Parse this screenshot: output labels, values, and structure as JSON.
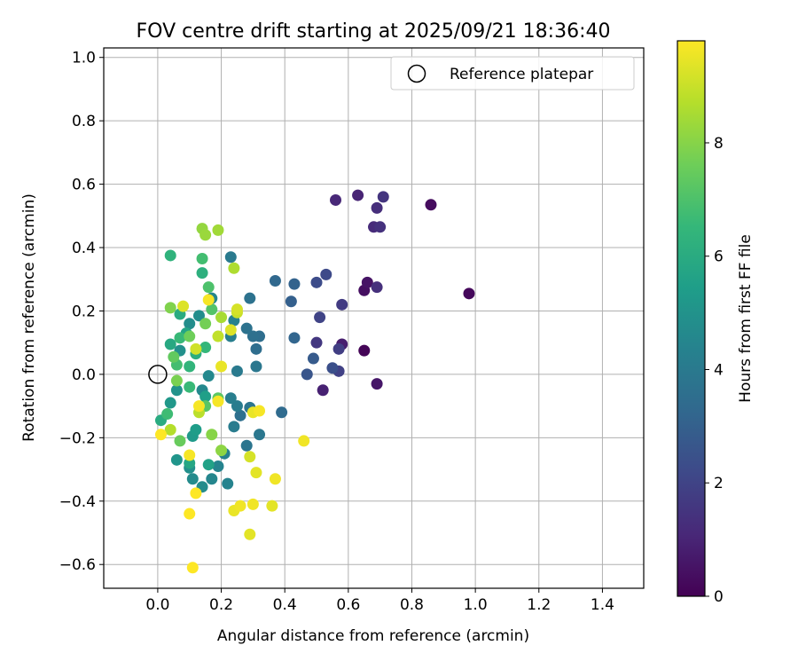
{
  "chart_data": {
    "type": "scatter",
    "title": "FOV centre drift starting at 2025/09/21 18:36:40",
    "xlabel": "Angular distance from reference (arcmin)",
    "ylabel": "Rotation from reference (arcmin)",
    "xlim": [
      -0.17,
      1.53
    ],
    "ylim": [
      -0.675,
      1.03
    ],
    "xticks": [
      0.0,
      0.2,
      0.4,
      0.6,
      0.8,
      1.0,
      1.2,
      1.4
    ],
    "xtick_labels": [
      "0.0",
      "0.2",
      "0.4",
      "0.6",
      "0.8",
      "1.0",
      "1.2",
      "1.4"
    ],
    "yticks": [
      -0.6,
      -0.4,
      -0.2,
      0.0,
      0.2,
      0.4,
      0.6,
      0.8,
      1.0
    ],
    "ytick_labels": [
      "−0.6",
      "−0.4",
      "−0.2",
      "0.0",
      "0.2",
      "0.4",
      "0.6",
      "0.8",
      "1.0"
    ],
    "grid": true,
    "legend": {
      "position": "top-right",
      "entries": [
        "Reference platepar"
      ]
    },
    "reference_point": {
      "x": 0.0,
      "y": 0.0,
      "label": "Reference platepar"
    },
    "colorbar": {
      "label": "Hours from first FF file",
      "range": [
        0,
        9.8
      ],
      "ticks": [
        0,
        2,
        4,
        6,
        8
      ],
      "tick_labels": [
        "0",
        "2",
        "4",
        "6",
        "8"
      ],
      "colormap": [
        "#440154",
        "#482878",
        "#3e4989",
        "#31688e",
        "#26828e",
        "#1f9e89",
        "#35b779",
        "#6ece58",
        "#b5de2b",
        "#fde725"
      ]
    },
    "points": [
      {
        "x": 0.65,
        "y": 0.075,
        "h": 0.1
      },
      {
        "x": 0.98,
        "y": 0.255,
        "h": 0.2
      },
      {
        "x": 0.86,
        "y": 0.535,
        "h": 0.3
      },
      {
        "x": 0.65,
        "y": 0.265,
        "h": 0.4
      },
      {
        "x": 0.66,
        "y": 0.29,
        "h": 0.5
      },
      {
        "x": 0.69,
        "y": -0.03,
        "h": 0.6
      },
      {
        "x": 0.58,
        "y": 0.095,
        "h": 0.8
      },
      {
        "x": 0.52,
        "y": -0.05,
        "h": 0.9
      },
      {
        "x": 0.63,
        "y": 0.565,
        "h": 1.0
      },
      {
        "x": 0.56,
        "y": 0.55,
        "h": 1.1
      },
      {
        "x": 0.68,
        "y": 0.465,
        "h": 1.2
      },
      {
        "x": 0.69,
        "y": 0.525,
        "h": 1.3
      },
      {
        "x": 0.69,
        "y": 0.275,
        "h": 1.35
      },
      {
        "x": 0.7,
        "y": 0.465,
        "h": 1.4
      },
      {
        "x": 0.71,
        "y": 0.56,
        "h": 1.5
      },
      {
        "x": 0.5,
        "y": 0.1,
        "h": 1.6
      },
      {
        "x": 0.58,
        "y": 0.22,
        "h": 1.7
      },
      {
        "x": 0.57,
        "y": 0.08,
        "h": 1.8
      },
      {
        "x": 0.57,
        "y": 0.01,
        "h": 1.9
      },
      {
        "x": 0.51,
        "y": 0.18,
        "h": 2.0
      },
      {
        "x": 0.53,
        "y": 0.315,
        "h": 2.2
      },
      {
        "x": 0.5,
        "y": 0.29,
        "h": 2.3
      },
      {
        "x": 0.55,
        "y": 0.02,
        "h": 2.4
      },
      {
        "x": 0.47,
        "y": 0.0,
        "h": 2.6
      },
      {
        "x": 0.49,
        "y": 0.05,
        "h": 2.8
      },
      {
        "x": 0.42,
        "y": 0.23,
        "h": 3.0
      },
      {
        "x": 0.43,
        "y": 0.285,
        "h": 3.1
      },
      {
        "x": 0.43,
        "y": 0.115,
        "h": 3.2
      },
      {
        "x": 0.37,
        "y": 0.295,
        "h": 3.3
      },
      {
        "x": 0.39,
        "y": -0.12,
        "h": 3.4
      },
      {
        "x": 0.32,
        "y": 0.12,
        "h": 3.5
      },
      {
        "x": 0.31,
        "y": 0.08,
        "h": 3.5
      },
      {
        "x": 0.3,
        "y": 0.12,
        "h": 3.6
      },
      {
        "x": 0.26,
        "y": -0.13,
        "h": 3.6
      },
      {
        "x": 0.28,
        "y": 0.145,
        "h": 3.7
      },
      {
        "x": 0.29,
        "y": 0.24,
        "h": 3.7
      },
      {
        "x": 0.28,
        "y": -0.225,
        "h": 3.8
      },
      {
        "x": 0.29,
        "y": -0.105,
        "h": 3.8
      },
      {
        "x": 0.31,
        "y": 0.025,
        "h": 3.9
      },
      {
        "x": 0.32,
        "y": -0.19,
        "h": 3.9
      },
      {
        "x": 0.23,
        "y": 0.37,
        "h": 4.0
      },
      {
        "x": 0.25,
        "y": 0.01,
        "h": 4.0
      },
      {
        "x": 0.24,
        "y": -0.165,
        "h": 4.1
      },
      {
        "x": 0.25,
        "y": -0.1,
        "h": 4.1
      },
      {
        "x": 0.23,
        "y": -0.075,
        "h": 4.2
      },
      {
        "x": 0.23,
        "y": 0.12,
        "h": 4.2
      },
      {
        "x": 0.24,
        "y": 0.17,
        "h": 4.3
      },
      {
        "x": 0.21,
        "y": -0.25,
        "h": 4.3
      },
      {
        "x": 0.22,
        "y": -0.345,
        "h": 4.4
      },
      {
        "x": 0.19,
        "y": -0.29,
        "h": 4.4
      },
      {
        "x": 0.17,
        "y": -0.33,
        "h": 4.5
      },
      {
        "x": 0.17,
        "y": 0.24,
        "h": 4.5
      },
      {
        "x": 0.16,
        "y": -0.005,
        "h": 4.6
      },
      {
        "x": 0.14,
        "y": -0.05,
        "h": 4.6
      },
      {
        "x": 0.14,
        "y": -0.355,
        "h": 4.7
      },
      {
        "x": 0.11,
        "y": -0.33,
        "h": 4.7
      },
      {
        "x": 0.13,
        "y": 0.185,
        "h": 4.8
      },
      {
        "x": 0.1,
        "y": 0.16,
        "h": 4.8
      },
      {
        "x": 0.1,
        "y": -0.295,
        "h": 4.9
      },
      {
        "x": 0.07,
        "y": 0.075,
        "h": 4.9
      },
      {
        "x": 0.06,
        "y": -0.05,
        "h": 5.0
      },
      {
        "x": 0.06,
        "y": -0.27,
        "h": 5.1
      },
      {
        "x": 0.04,
        "y": -0.09,
        "h": 5.2
      },
      {
        "x": 0.11,
        "y": -0.195,
        "h": 5.3
      },
      {
        "x": 0.12,
        "y": -0.175,
        "h": 5.4
      },
      {
        "x": 0.15,
        "y": -0.07,
        "h": 5.5
      },
      {
        "x": 0.16,
        "y": -0.285,
        "h": 5.6
      },
      {
        "x": 0.09,
        "y": 0.13,
        "h": 5.7
      },
      {
        "x": 0.1,
        "y": -0.28,
        "h": 5.8
      },
      {
        "x": 0.04,
        "y": 0.095,
        "h": 5.9
      },
      {
        "x": 0.01,
        "y": -0.145,
        "h": 6.0
      },
      {
        "x": 0.07,
        "y": 0.19,
        "h": 6.0
      },
      {
        "x": 0.12,
        "y": 0.065,
        "h": 6.1
      },
      {
        "x": 0.14,
        "y": 0.32,
        "h": 6.2
      },
      {
        "x": 0.04,
        "y": 0.375,
        "h": 6.3
      },
      {
        "x": 0.1,
        "y": 0.025,
        "h": 6.4
      },
      {
        "x": 0.15,
        "y": 0.085,
        "h": 6.5
      },
      {
        "x": 0.07,
        "y": 0.115,
        "h": 6.6
      },
      {
        "x": 0.1,
        "y": -0.04,
        "h": 6.6
      },
      {
        "x": 0.03,
        "y": -0.125,
        "h": 6.7
      },
      {
        "x": 0.06,
        "y": 0.03,
        "h": 6.8
      },
      {
        "x": 0.14,
        "y": 0.365,
        "h": 6.8
      },
      {
        "x": 0.16,
        "y": 0.275,
        "h": 7.0
      },
      {
        "x": 0.17,
        "y": 0.205,
        "h": 7.1
      },
      {
        "x": 0.15,
        "y": -0.1,
        "h": 7.2
      },
      {
        "x": 0.19,
        "y": -0.075,
        "h": 7.3
      },
      {
        "x": 0.05,
        "y": 0.055,
        "h": 7.4
      },
      {
        "x": 0.07,
        "y": -0.21,
        "h": 7.5
      },
      {
        "x": 0.1,
        "y": 0.12,
        "h": 7.6
      },
      {
        "x": 0.15,
        "y": 0.16,
        "h": 7.7
      },
      {
        "x": 0.06,
        "y": -0.02,
        "h": 7.8
      },
      {
        "x": 0.04,
        "y": 0.21,
        "h": 7.9
      },
      {
        "x": 0.17,
        "y": -0.19,
        "h": 8.0
      },
      {
        "x": 0.2,
        "y": -0.24,
        "h": 8.1
      },
      {
        "x": 0.14,
        "y": 0.46,
        "h": 8.2
      },
      {
        "x": 0.15,
        "y": 0.44,
        "h": 8.3
      },
      {
        "x": 0.19,
        "y": 0.455,
        "h": 8.4
      },
      {
        "x": 0.2,
        "y": 0.18,
        "h": 8.5
      },
      {
        "x": 0.24,
        "y": 0.335,
        "h": 8.6
      },
      {
        "x": 0.04,
        "y": -0.175,
        "h": 8.7
      },
      {
        "x": 0.13,
        "y": -0.12,
        "h": 8.8
      },
      {
        "x": 0.19,
        "y": 0.12,
        "h": 8.9
      },
      {
        "x": 0.25,
        "y": 0.195,
        "h": 9.0
      },
      {
        "x": 0.12,
        "y": 0.08,
        "h": 9.1
      },
      {
        "x": 0.29,
        "y": -0.26,
        "h": 9.2
      },
      {
        "x": 0.25,
        "y": 0.205,
        "h": 9.2
      },
      {
        "x": 0.23,
        "y": 0.14,
        "h": 9.3
      },
      {
        "x": 0.08,
        "y": 0.215,
        "h": 9.3
      },
      {
        "x": 0.31,
        "y": -0.31,
        "h": 9.4
      },
      {
        "x": 0.29,
        "y": -0.505,
        "h": 9.4
      },
      {
        "x": 0.36,
        "y": -0.415,
        "h": 9.4
      },
      {
        "x": 0.24,
        "y": -0.43,
        "h": 9.5
      },
      {
        "x": 0.3,
        "y": -0.12,
        "h": 9.5
      },
      {
        "x": 0.2,
        "y": 0.025,
        "h": 9.5
      },
      {
        "x": 0.46,
        "y": -0.21,
        "h": 9.6
      },
      {
        "x": 0.37,
        "y": -0.33,
        "h": 9.6
      },
      {
        "x": 0.26,
        "y": -0.415,
        "h": 9.6
      },
      {
        "x": 0.3,
        "y": -0.41,
        "h": 9.6
      },
      {
        "x": 0.32,
        "y": -0.115,
        "h": 9.7
      },
      {
        "x": 0.16,
        "y": 0.235,
        "h": 9.7
      },
      {
        "x": 0.13,
        "y": -0.1,
        "h": 9.7
      },
      {
        "x": 0.19,
        "y": -0.085,
        "h": 9.7
      },
      {
        "x": 0.1,
        "y": -0.255,
        "h": 9.7
      },
      {
        "x": 0.12,
        "y": -0.375,
        "h": 9.8
      },
      {
        "x": 0.1,
        "y": -0.44,
        "h": 9.8
      },
      {
        "x": 0.11,
        "y": -0.61,
        "h": 9.8
      },
      {
        "x": 0.01,
        "y": -0.19,
        "h": 9.8
      }
    ]
  }
}
